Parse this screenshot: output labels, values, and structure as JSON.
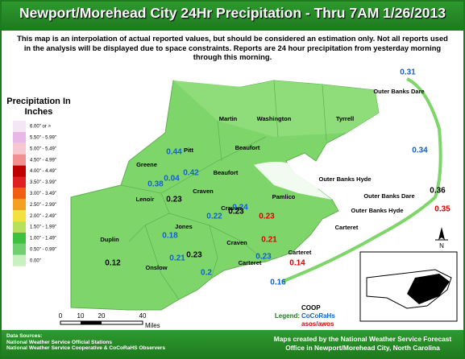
{
  "header": {
    "title": "Newport/Morehead City 24Hr Precipitation - Thru 7AM 1/26/2013"
  },
  "description": "This map is an interpolation of actual reported values, but should be considered an estimation only. Not all reports used in the analysis will be displayed due to space constraints. Reports are 24 hour precipitation from yesterday morning through this morning.",
  "legend": {
    "title": "Precipitation In Inches",
    "classes": [
      {
        "label": "6.00\" or >",
        "color": "#f4e6f4"
      },
      {
        "label": "5.50\" - 5.99\"",
        "color": "#e9b8e6"
      },
      {
        "label": "5.00\" - 5.49\"",
        "color": "#f7c8d2"
      },
      {
        "label": "4.50\" - 4.99\"",
        "color": "#f09090"
      },
      {
        "label": "4.00\" - 4.49\"",
        "color": "#c00000"
      },
      {
        "label": "3.50\" - 3.99\"",
        "color": "#e02020"
      },
      {
        "label": "3.00\" - 3.49\"",
        "color": "#f06010"
      },
      {
        "label": "2.50\" - 2.99\"",
        "color": "#f4a020"
      },
      {
        "label": "2.00\" - 2.49\"",
        "color": "#f4e040"
      },
      {
        "label": "1.50\" - 1.99\"",
        "color": "#b8e060"
      },
      {
        "label": "1.00\" - 1.49\"",
        "color": "#40c040"
      },
      {
        "label": "0.50\" - 0.99\"",
        "color": "#70d070"
      },
      {
        "label": "0.00\"",
        "color": "#c8f0c0"
      }
    ]
  },
  "networks": {
    "label": "Legend:",
    "items": [
      {
        "name": "COOP",
        "color": "#000000"
      },
      {
        "name": "CoCoRaHs",
        "color": "#1060d0"
      },
      {
        "name": "asos/awos",
        "color": "#e00000"
      }
    ]
  },
  "counties": [
    "Martin",
    "Washington",
    "Tyrrell",
    "Pitt",
    "Greene",
    "Beaufort",
    "Beaufort",
    "Outer Banks Dare",
    "Outer Banks Hyde",
    "Outer Banks Dare",
    "Outer Banks Hyde",
    "Lenoir",
    "Craven",
    "Craven",
    "Craven",
    "Pamlico",
    "Jones",
    "Duplin",
    "Onslow",
    "Carteret",
    "Carteret",
    "Carteret"
  ],
  "reports": [
    {
      "value": "0.31",
      "network": 1
    },
    {
      "value": "0.34",
      "network": 1
    },
    {
      "value": "0.44",
      "network": 1
    },
    {
      "value": "0.04",
      "network": 1
    },
    {
      "value": "0.42",
      "network": 1
    },
    {
      "value": "0.38",
      "network": 1
    },
    {
      "value": "0.23",
      "network": 0
    },
    {
      "value": "0.36",
      "network": 0
    },
    {
      "value": "0.35",
      "network": 2
    },
    {
      "value": "0.24",
      "network": 1
    },
    {
      "value": "0.22",
      "network": 1
    },
    {
      "value": "0.23",
      "network": 0
    },
    {
      "value": "0.23",
      "network": 2
    },
    {
      "value": "0.18",
      "network": 1
    },
    {
      "value": "0.21",
      "network": 2
    },
    {
      "value": "0.23",
      "network": 0
    },
    {
      "value": "0.21",
      "network": 1
    },
    {
      "value": "0.23",
      "network": 1
    },
    {
      "value": "0.14",
      "network": 2
    },
    {
      "value": "0.2",
      "network": 1
    },
    {
      "value": "0.16",
      "network": 1
    },
    {
      "value": "0.12",
      "network": 0
    }
  ],
  "scale": {
    "ticks": [
      "0",
      "10",
      "20",
      "40"
    ],
    "unit": "Miles"
  },
  "north": "N",
  "footer": {
    "sources_title": "Data Sources:",
    "sources": [
      "National Weather Service Official Stations",
      "National Weather Service Cooperative & CoCoRaHS Observers"
    ],
    "credit": "Maps created by the National Weather Service Forecast Office in Newport/Morehead City, North Carolina"
  }
}
